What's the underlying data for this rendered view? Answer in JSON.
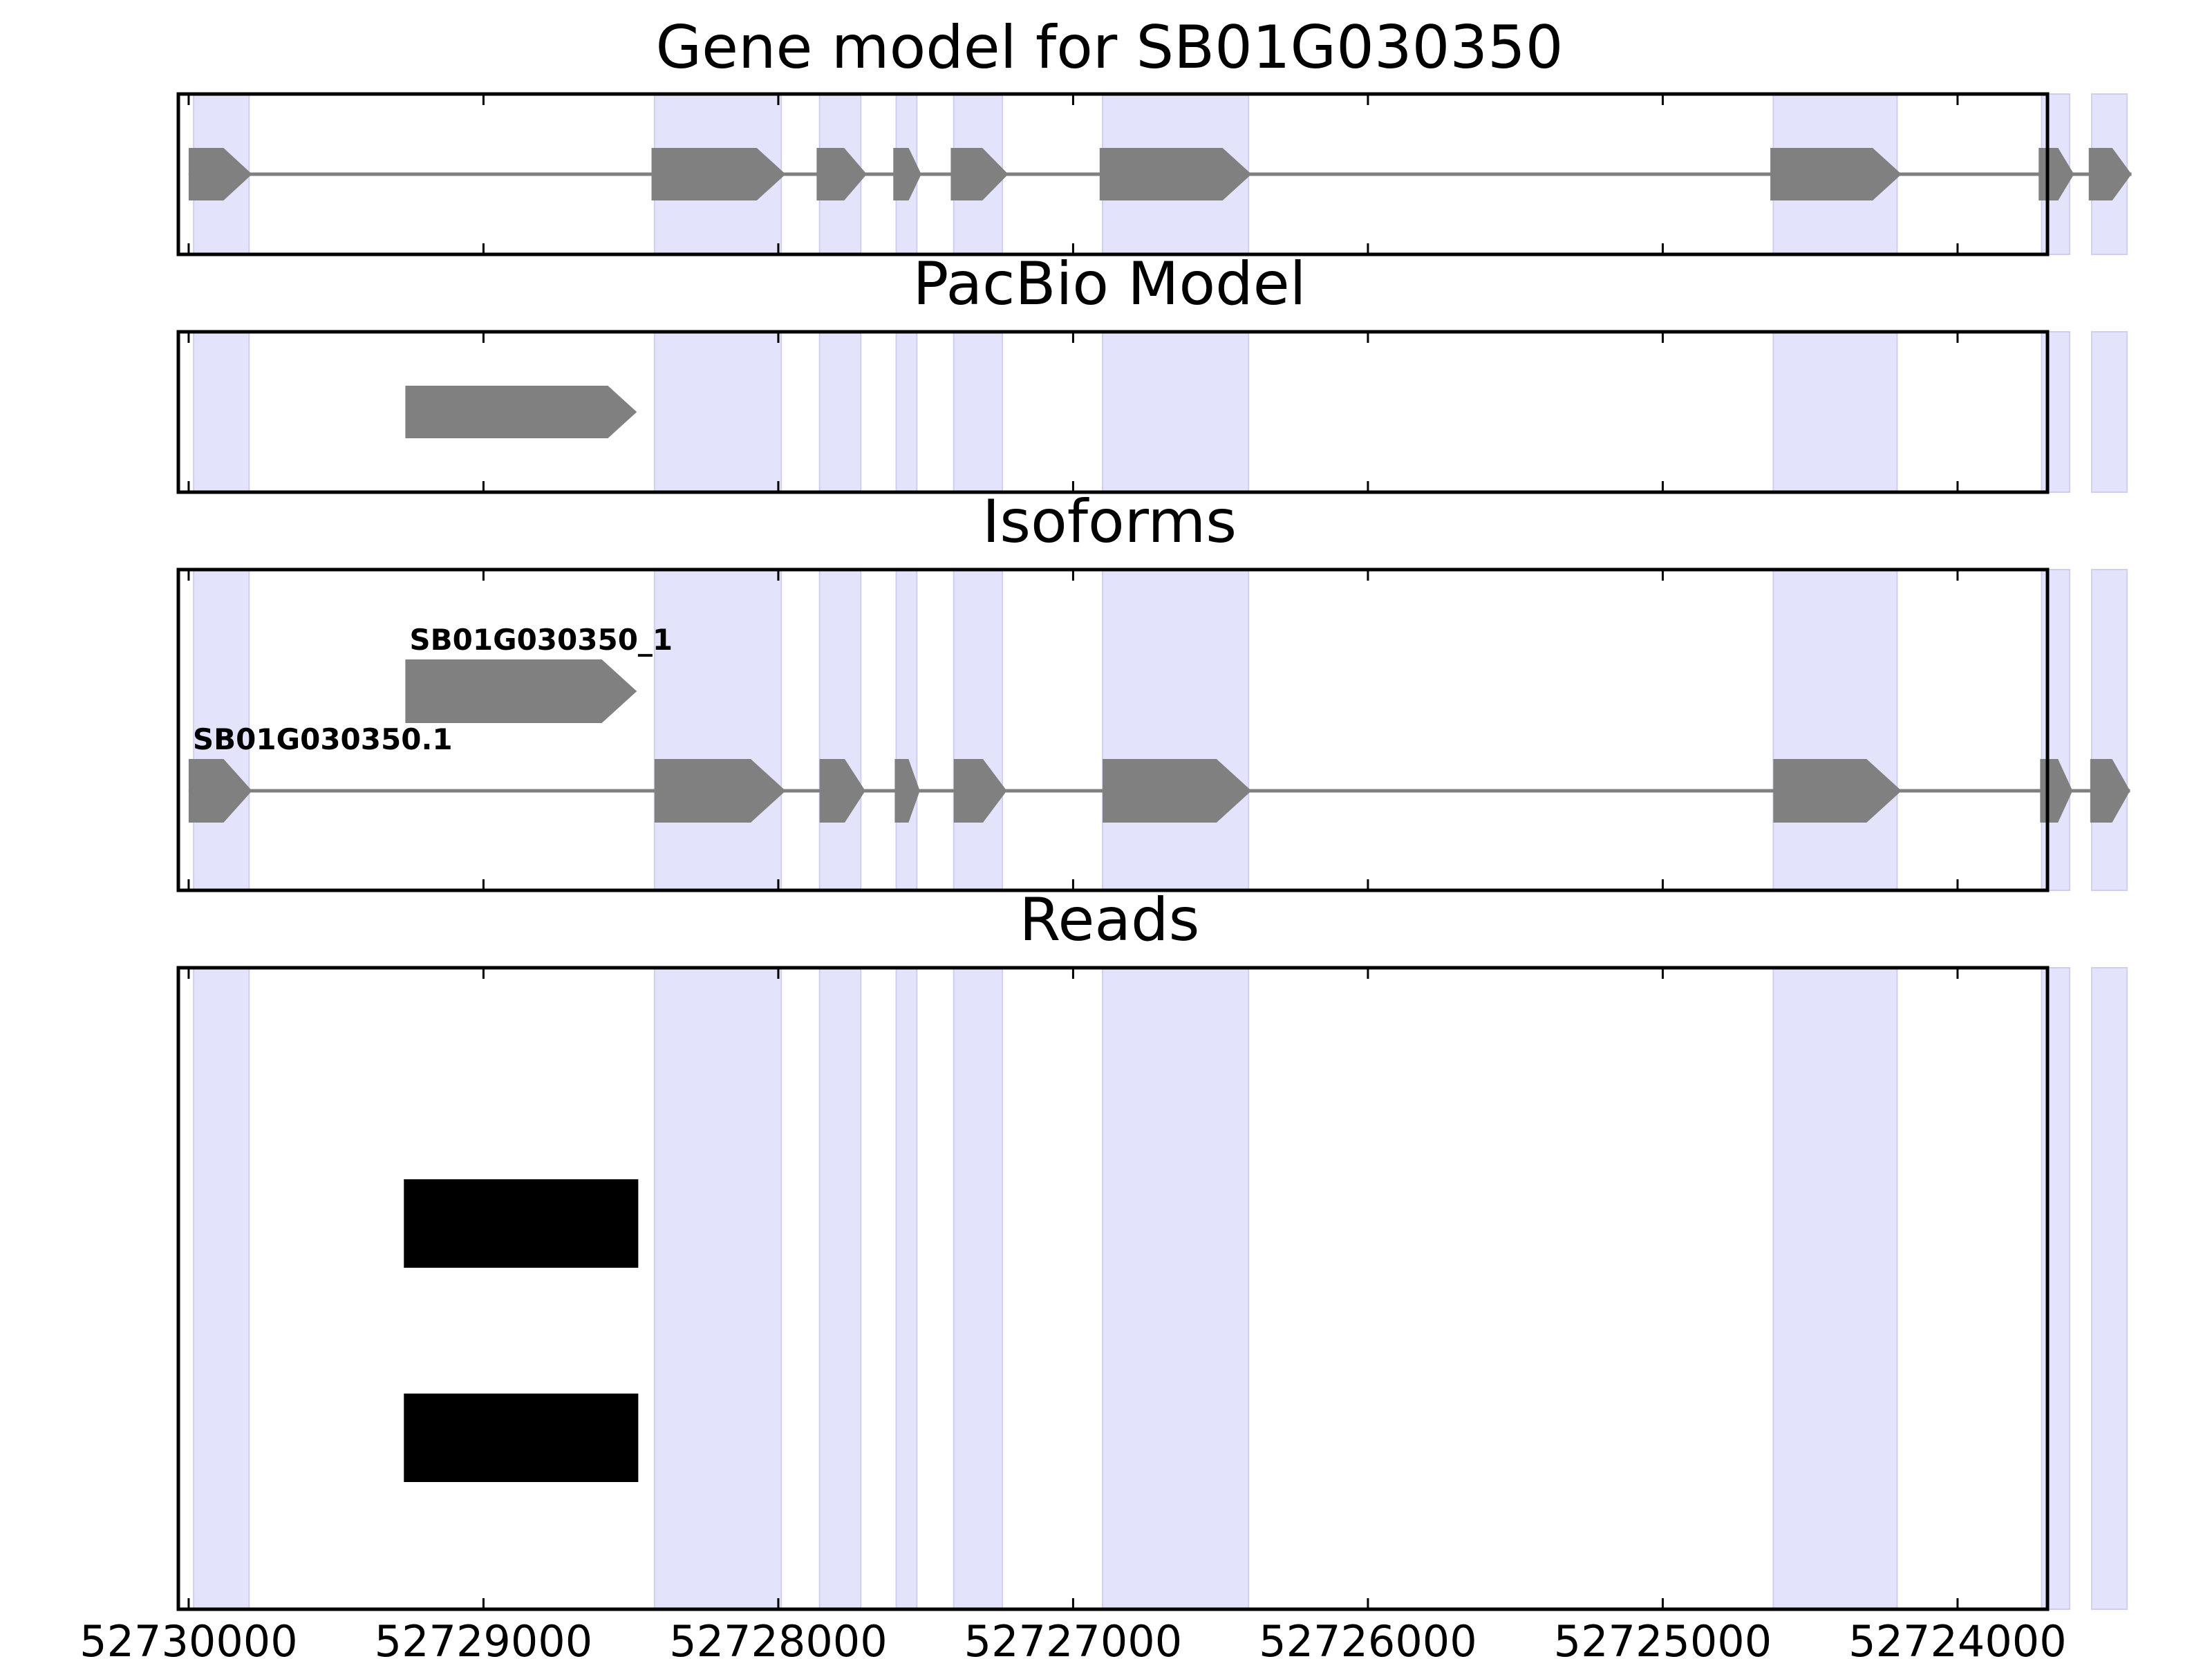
{
  "chart_data": {
    "type": "gene-model-tracks",
    "x_axis": {
      "reversed": true,
      "range": [
        52730035,
        52723695
      ],
      "ticks": [
        {
          "value": 52730000,
          "label": "52730000"
        },
        {
          "value": 52729000,
          "label": "52729000"
        },
        {
          "value": 52728000,
          "label": "52728000"
        },
        {
          "value": 52727000,
          "label": "52727000"
        },
        {
          "value": 52726000,
          "label": "52726000"
        },
        {
          "value": 52725000,
          "label": "52725000"
        },
        {
          "value": 52724000,
          "label": "52724000"
        }
      ]
    },
    "highlight_color": "#e3e3fb",
    "feature_color": "#808080",
    "read_color": "#000000",
    "exon_regions": [
      [
        52729983,
        52729795
      ],
      [
        52728420,
        52727990
      ],
      [
        52727860,
        52727720
      ],
      [
        52727600,
        52727530
      ],
      [
        52727405,
        52727240
      ],
      [
        52726900,
        52726405
      ],
      [
        52724625,
        52724205
      ],
      [
        52723715,
        52723620
      ],
      [
        52723545,
        52723425
      ]
    ],
    "panels": [
      {
        "title": "Gene model for SB01G030350",
        "features": [
          {
            "label": "",
            "exons": [
              [
                52730000,
                52729785
              ],
              [
                52728430,
                52727975
              ],
              [
                52727870,
                52727700
              ],
              [
                52727610,
                52727515
              ],
              [
                52727415,
                52727220
              ],
              [
                52726910,
                52726395
              ],
              [
                52724635,
                52724190
              ],
              [
                52723725,
                52723605
              ],
              [
                52723555,
                52723410
              ]
            ]
          }
        ]
      },
      {
        "title": "PacBio Model",
        "features": [
          {
            "label": "",
            "exons": [
              [
                52729265,
                52728480
              ]
            ]
          }
        ]
      },
      {
        "title": "Isoforms",
        "features": [
          {
            "label": "SB01G030350_1",
            "exons": [
              [
                52729265,
                52728480
              ]
            ]
          },
          {
            "label": "SB01G030350.1",
            "exons": [
              [
                52730000,
                52729785
              ],
              [
                52728420,
                52727975
              ],
              [
                52727860,
                52727705
              ],
              [
                52727605,
                52727520
              ],
              [
                52727405,
                52727225
              ],
              [
                52726900,
                52726395
              ],
              [
                52724625,
                52724190
              ],
              [
                52723720,
                52723610
              ],
              [
                52723550,
                52723415
              ]
            ]
          }
        ]
      },
      {
        "title": "Reads",
        "reads": [
          [
            52729270,
            52728475
          ],
          [
            52729270,
            52728475
          ]
        ]
      }
    ]
  }
}
